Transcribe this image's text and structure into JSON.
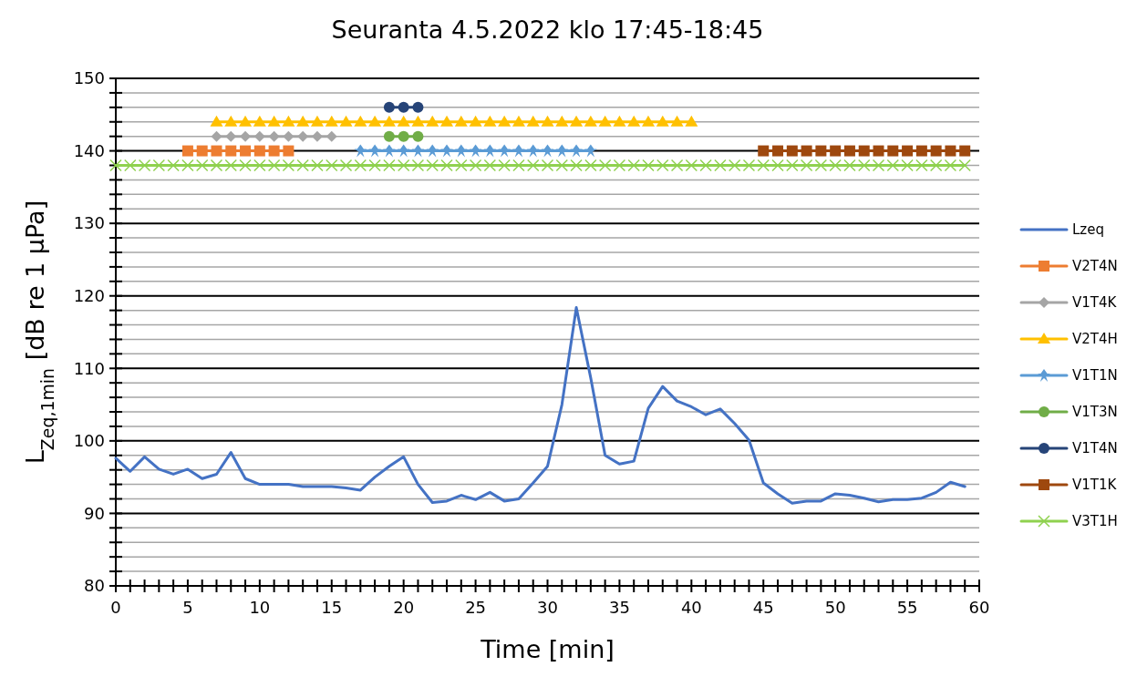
{
  "chart_data": {
    "type": "line",
    "title": "Seuranta 4.5.2022 klo 17:45-18:45",
    "xlabel": "Time [min]",
    "ylabel": "L$_{Zeq,1min}$ [dB re 1 μPa]",
    "xlim": [
      0,
      60
    ],
    "xticks": [
      0,
      {
        "value": 1,
        "label": null
      },
      {
        "value": 2,
        "label": null
      },
      {
        "value": 3,
        "label": null
      },
      {
        "value": 4,
        "label": null
      },
      5,
      {
        "value": 6,
        "label": null
      },
      {
        "value": 7,
        "label": null
      },
      {
        "value": 8,
        "label": null
      },
      {
        "value": 9,
        "label": null
      },
      10,
      {
        "value": 11,
        "label": null
      },
      {
        "value": 12,
        "label": null
      },
      {
        "value": 13,
        "label": null
      },
      {
        "value": 14,
        "label": null
      },
      15,
      {
        "value": 16,
        "label": null
      },
      {
        "value": 17,
        "label": null
      },
      {
        "value": 18,
        "label": null
      },
      {
        "value": 19,
        "label": null
      },
      20,
      {
        "value": 21,
        "label": null
      },
      {
        "value": 22,
        "label": null
      },
      {
        "value": 23,
        "label": null
      },
      {
        "value": 24,
        "label": null
      },
      25,
      {
        "value": 26,
        "label": null
      },
      {
        "value": 27,
        "label": null
      },
      {
        "value": 28,
        "label": null
      },
      {
        "value": 29,
        "label": null
      },
      30,
      {
        "value": 31,
        "label": null
      },
      {
        "value": 32,
        "label": null
      },
      {
        "value": 33,
        "label": null
      },
      {
        "value": 34,
        "label": null
      },
      35,
      {
        "value": 36,
        "label": null
      },
      {
        "value": 37,
        "label": null
      },
      {
        "value": 38,
        "label": null
      },
      {
        "value": 39,
        "label": null
      },
      40,
      {
        "value": 41,
        "label": null
      },
      {
        "value": 42,
        "label": null
      },
      {
        "value": 43,
        "label": null
      },
      {
        "value": 44,
        "label": null
      },
      45,
      {
        "value": 46,
        "label": null
      },
      {
        "value": 47,
        "label": null
      },
      {
        "value": 48,
        "label": null
      },
      {
        "value": 49,
        "label": null
      },
      50,
      {
        "value": 51,
        "label": null
      },
      {
        "value": 52,
        "label": null
      },
      {
        "value": 53,
        "label": null
      },
      {
        "value": 54,
        "label": null
      },
      55,
      {
        "value": 56,
        "label": null
      },
      {
        "value": 57,
        "label": null
      },
      {
        "value": 58,
        "label": null
      },
      {
        "value": 59,
        "label": null
      },
      60
    ],
    "ylim": [
      80,
      150
    ],
    "yticks": [
      80,
      {
        "value": 82,
        "label": null
      },
      {
        "value": 84,
        "label": null
      },
      {
        "value": 86,
        "label": null
      },
      {
        "value": 88,
        "label": null
      },
      90,
      {
        "value": 92,
        "label": null
      },
      {
        "value": 94,
        "label": null
      },
      {
        "value": 96,
        "label": null
      },
      {
        "value": 98,
        "label": null
      },
      100,
      {
        "value": 102,
        "label": null
      },
      {
        "value": 104,
        "label": null
      },
      {
        "value": 106,
        "label": null
      },
      {
        "value": 108,
        "label": null
      },
      110,
      {
        "value": 112,
        "label": null
      },
      {
        "value": 114,
        "label": null
      },
      {
        "value": 116,
        "label": null
      },
      {
        "value": 118,
        "label": null
      },
      120,
      {
        "value": 122,
        "label": null
      },
      {
        "value": 124,
        "label": null
      },
      {
        "value": 126,
        "label": null
      },
      {
        "value": 128,
        "label": null
      },
      130,
      {
        "value": 132,
        "label": null
      },
      {
        "value": 134,
        "label": null
      },
      {
        "value": 136,
        "label": null
      },
      {
        "value": 138,
        "label": null
      },
      140,
      {
        "value": 142,
        "label": null
      },
      {
        "value": 144,
        "label": null
      },
      {
        "value": 146,
        "label": null
      },
      {
        "value": 148,
        "label": null
      },
      150
    ],
    "grid": "y",
    "legend": "right",
    "series": [
      {
        "name": "Lzeq",
        "color": "#4472c4",
        "marker": "none",
        "x": [
          0,
          1,
          2,
          3,
          4,
          5,
          6,
          7,
          8,
          9,
          10,
          11,
          12,
          13,
          14,
          15,
          16,
          17,
          18,
          19,
          20,
          21,
          22,
          23,
          24,
          25,
          26,
          27,
          28,
          29,
          30,
          31,
          32,
          33,
          34,
          35,
          36,
          37,
          38,
          39,
          40,
          41,
          42,
          43,
          44,
          45,
          46,
          47,
          48,
          49,
          50,
          51,
          52,
          53,
          54,
          55,
          56,
          57,
          58,
          59
        ],
        "values": [
          97.6,
          95.8,
          97.8,
          96.1,
          95.4,
          96.1,
          94.8,
          95.4,
          98.4,
          94.8,
          94.0,
          94.0,
          94.0,
          93.7,
          93.7,
          93.7,
          93.5,
          93.2,
          95.0,
          96.5,
          97.8,
          94.0,
          91.5,
          91.7,
          92.5,
          91.9,
          92.9,
          91.7,
          92.0,
          94.2,
          96.5,
          105.0,
          118.4,
          108.7,
          98.0,
          96.8,
          97.2,
          104.5,
          107.5,
          105.5,
          104.7,
          103.6,
          104.4,
          102.4,
          100.1,
          94.2,
          92.7,
          91.4,
          91.7,
          91.7,
          92.7,
          92.5,
          92.1,
          91.6,
          91.9,
          91.9,
          92.1,
          92.9,
          94.3,
          93.7
        ]
      },
      {
        "name": "V2T4N",
        "color": "#ed7d31",
        "marker": "square",
        "x": [
          5,
          6,
          7,
          8,
          9,
          10,
          11,
          12
        ],
        "values": [
          140,
          140,
          140,
          140,
          140,
          140,
          140,
          140
        ]
      },
      {
        "name": "V1T4K",
        "color": "#a5a5a5",
        "marker": "diamond",
        "x": [
          7,
          8,
          9,
          10,
          11,
          12,
          13,
          14,
          15
        ],
        "values": [
          142,
          142,
          142,
          142,
          142,
          142,
          142,
          142,
          142
        ]
      },
      {
        "name": "V2T4H",
        "color": "#ffc000",
        "marker": "triangle",
        "x": [
          7,
          8,
          9,
          10,
          11,
          12,
          13,
          14,
          15,
          16,
          17,
          18,
          19,
          20,
          21,
          22,
          23,
          24,
          25,
          26,
          27,
          28,
          29,
          30,
          31,
          32,
          33,
          34,
          35,
          36,
          37,
          38,
          39,
          40
        ],
        "values": [
          144,
          144,
          144,
          144,
          144,
          144,
          144,
          144,
          144,
          144,
          144,
          144,
          144,
          144,
          144,
          144,
          144,
          144,
          144,
          144,
          144,
          144,
          144,
          144,
          144,
          144,
          144,
          144,
          144,
          144,
          144,
          144,
          144,
          144
        ]
      },
      {
        "name": "V1T1N",
        "color": "#5b9bd5",
        "marker": "star",
        "x": [
          17,
          18,
          19,
          20,
          21,
          22,
          23,
          24,
          25,
          26,
          27,
          28,
          29,
          30,
          31,
          32,
          33
        ],
        "values": [
          140,
          140,
          140,
          140,
          140,
          140,
          140,
          140,
          140,
          140,
          140,
          140,
          140,
          140,
          140,
          140,
          140
        ]
      },
      {
        "name": "V1T3N",
        "color": "#70ad47",
        "marker": "circle",
        "x": [
          19,
          20,
          21
        ],
        "values": [
          142,
          142,
          142
        ]
      },
      {
        "name": "V1T4N",
        "color": "#264478",
        "marker": "circle",
        "x": [
          19,
          20,
          21
        ],
        "values": [
          146,
          146,
          146
        ]
      },
      {
        "name": "V1T1K",
        "color": "#9e480e",
        "marker": "square",
        "x": [
          45,
          46,
          47,
          48,
          49,
          50,
          51,
          52,
          53,
          54,
          55,
          56,
          57,
          58,
          59
        ],
        "values": [
          140,
          140,
          140,
          140,
          140,
          140,
          140,
          140,
          140,
          140,
          140,
          140,
          140,
          140,
          140
        ]
      },
      {
        "name": "V3T1H",
        "color": "#8fd14f",
        "marker": "cross",
        "x": [
          0,
          1,
          2,
          3,
          4,
          5,
          6,
          7,
          8,
          9,
          10,
          11,
          12,
          13,
          14,
          15,
          16,
          17,
          18,
          19,
          20,
          21,
          22,
          23,
          24,
          25,
          26,
          27,
          28,
          29,
          30,
          31,
          32,
          33,
          34,
          35,
          36,
          37,
          38,
          39,
          40,
          41,
          42,
          43,
          44,
          45,
          46,
          47,
          48,
          49,
          50,
          51,
          52,
          53,
          54,
          55,
          56,
          57,
          58,
          59
        ],
        "values": [
          138,
          138,
          138,
          138,
          138,
          138,
          138,
          138,
          138,
          138,
          138,
          138,
          138,
          138,
          138,
          138,
          138,
          138,
          138,
          138,
          138,
          138,
          138,
          138,
          138,
          138,
          138,
          138,
          138,
          138,
          138,
          138,
          138,
          138,
          138,
          138,
          138,
          138,
          138,
          138,
          138,
          138,
          138,
          138,
          138,
          138,
          138,
          138,
          138,
          138,
          138,
          138,
          138,
          138,
          138,
          138,
          138,
          138,
          138,
          138
        ]
      }
    ]
  }
}
